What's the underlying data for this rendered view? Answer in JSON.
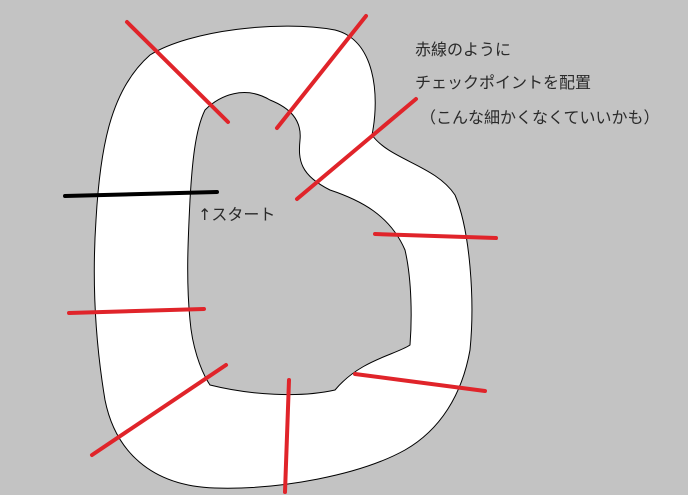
{
  "annotations": {
    "line1": "赤線のように",
    "line2": "チェックポイントを配置",
    "line3": "（こんな細かくなくていいかも）",
    "start": "↑スタート"
  },
  "colors": {
    "background": "#c3c3c3",
    "track": "#ffffff",
    "track_edge": "#000000",
    "checkpoint": "#e0242a",
    "start_line": "#000000"
  }
}
